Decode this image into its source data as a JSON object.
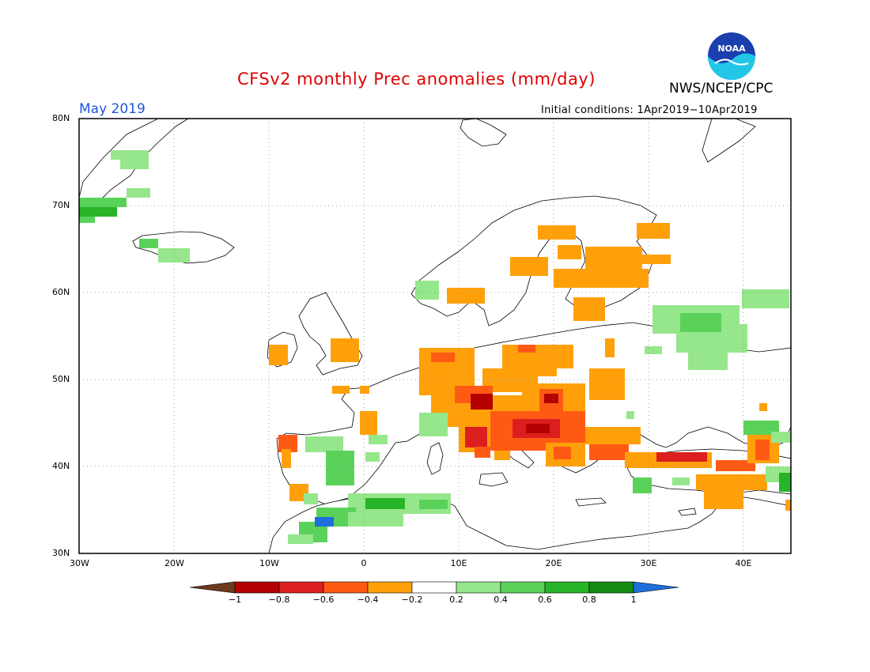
{
  "header": {
    "title": "CFSv2 monthly Prec anomalies (mm/day)",
    "month": "May 2019",
    "org": "NWS/NCEP/CPC",
    "initial_conditions": "Initial conditions: 1Apr2019−10Apr2019",
    "logo_text": "NOAA"
  },
  "map": {
    "lon_range": [
      -30,
      45
    ],
    "lat_range": [
      30,
      80
    ],
    "grid": "dotted",
    "lat_labels": [
      "80N",
      "70N",
      "60N",
      "50N",
      "40N",
      "30N"
    ],
    "lon_labels": [
      "30W",
      "20W",
      "10W",
      "0",
      "10E",
      "20E",
      "30E",
      "40E"
    ]
  },
  "colorbar": {
    "labels": [
      "−1",
      "−0.8",
      "−0.6",
      "−0.4",
      "−0.2",
      "0.2",
      "0.4",
      "0.6",
      "0.8",
      "1"
    ],
    "colors": [
      "#6b3a1c",
      "#b40000",
      "#dd1e1e",
      "#ff5a14",
      "#ffa00a",
      "#ffffff",
      "#96e68c",
      "#5ad25a",
      "#28b428",
      "#148c14",
      "#1e6edc"
    ]
  }
}
